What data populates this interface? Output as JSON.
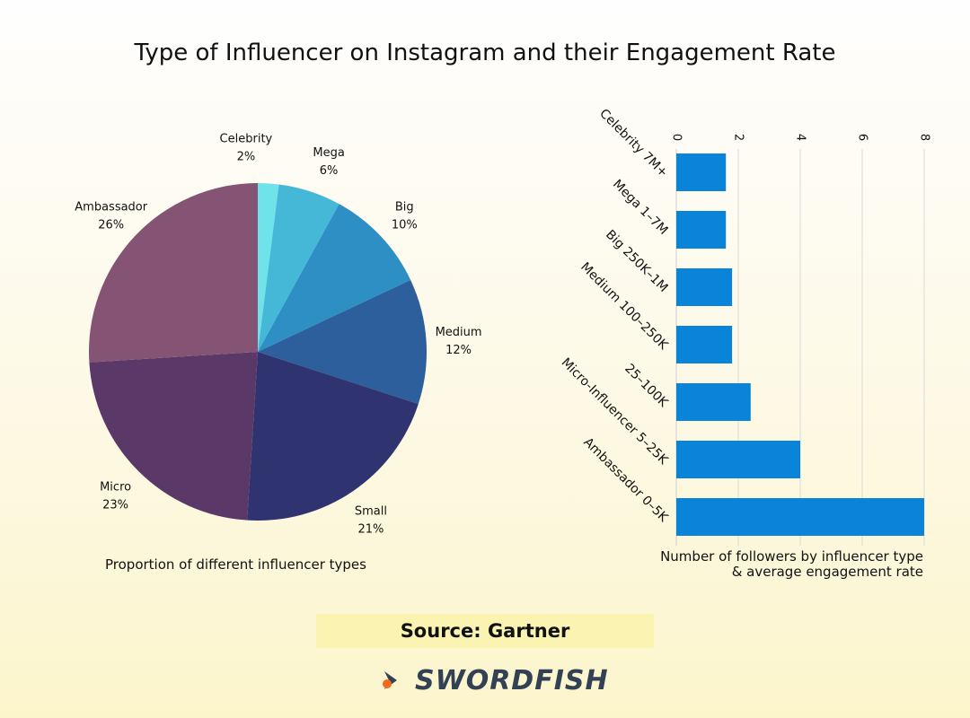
{
  "title": "Type of Influencer on Instagram and their Engagement Rate",
  "source_label": "Source: Gartner",
  "logo_text": "SWORDFISH",
  "colors": {
    "bar": "#0a84d8",
    "grid": "#d9d9d9",
    "pie": [
      "#6fe3ea",
      "#45b8d8",
      "#2e8fc5",
      "#2c5f9b",
      "#2f3470",
      "#5a3868",
      "#855373"
    ],
    "logo_accent": "#f26a21"
  },
  "chart_data": [
    {
      "type": "pie",
      "title": "Proportion of different influencer types",
      "slices": [
        {
          "label": "Celebrity",
          "value": 2
        },
        {
          "label": "Mega",
          "value": 6
        },
        {
          "label": "Big",
          "value": 10
        },
        {
          "label": "Medium",
          "value": 12
        },
        {
          "label": "Small",
          "value": 21
        },
        {
          "label": "Micro",
          "value": 23
        },
        {
          "label": "Ambassador",
          "value": 26
        }
      ],
      "value_suffix": "%"
    },
    {
      "type": "bar",
      "orientation": "horizontal",
      "title": "Number of followers by influencer type & average engagement rate",
      "title_lines": [
        "Number of followers by influencer type",
        "& average engagement rate"
      ],
      "categories": [
        "Celebrity 7M+",
        "Mega 1–7M",
        "Big 250K–1M",
        "Medium 100–250K",
        "25–100K",
        "Micro-Influencer 5–25K",
        "Ambassador 0–5K"
      ],
      "values": [
        1.6,
        1.6,
        1.8,
        1.8,
        2.4,
        4.0,
        8.0
      ],
      "xlim": [
        0,
        8
      ],
      "xticks": [
        0,
        2,
        4,
        6,
        8
      ],
      "axis_position": "top",
      "grid": true
    }
  ]
}
